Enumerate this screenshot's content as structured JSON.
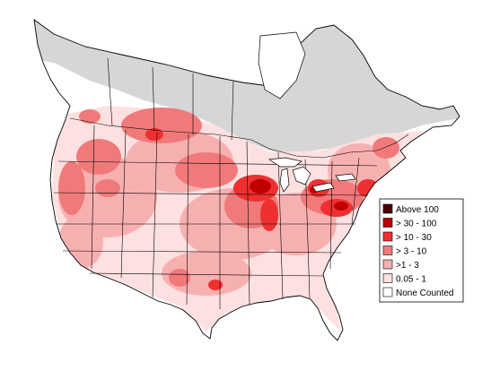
{
  "map": {
    "colors": {
      "no_data_region": "#d6d6d6",
      "background": "#ffffff",
      "boundary": "#000000"
    }
  },
  "legend": {
    "items": [
      {
        "label": "Above 100",
        "color": "#4a0000"
      },
      {
        "label": "> 30 - 100",
        "color": "#c00000"
      },
      {
        "label": "> 10 - 30",
        "color": "#ee3030"
      },
      {
        "label": "> 3 - 10",
        "color": "#f07a7a"
      },
      {
        "label": ">1 - 3",
        "color": "#f7b0b0"
      },
      {
        "label": "0.05 - 1",
        "color": "#fde0e0"
      },
      {
        "label": "None Counted",
        "color": "#ffffff"
      }
    ]
  }
}
